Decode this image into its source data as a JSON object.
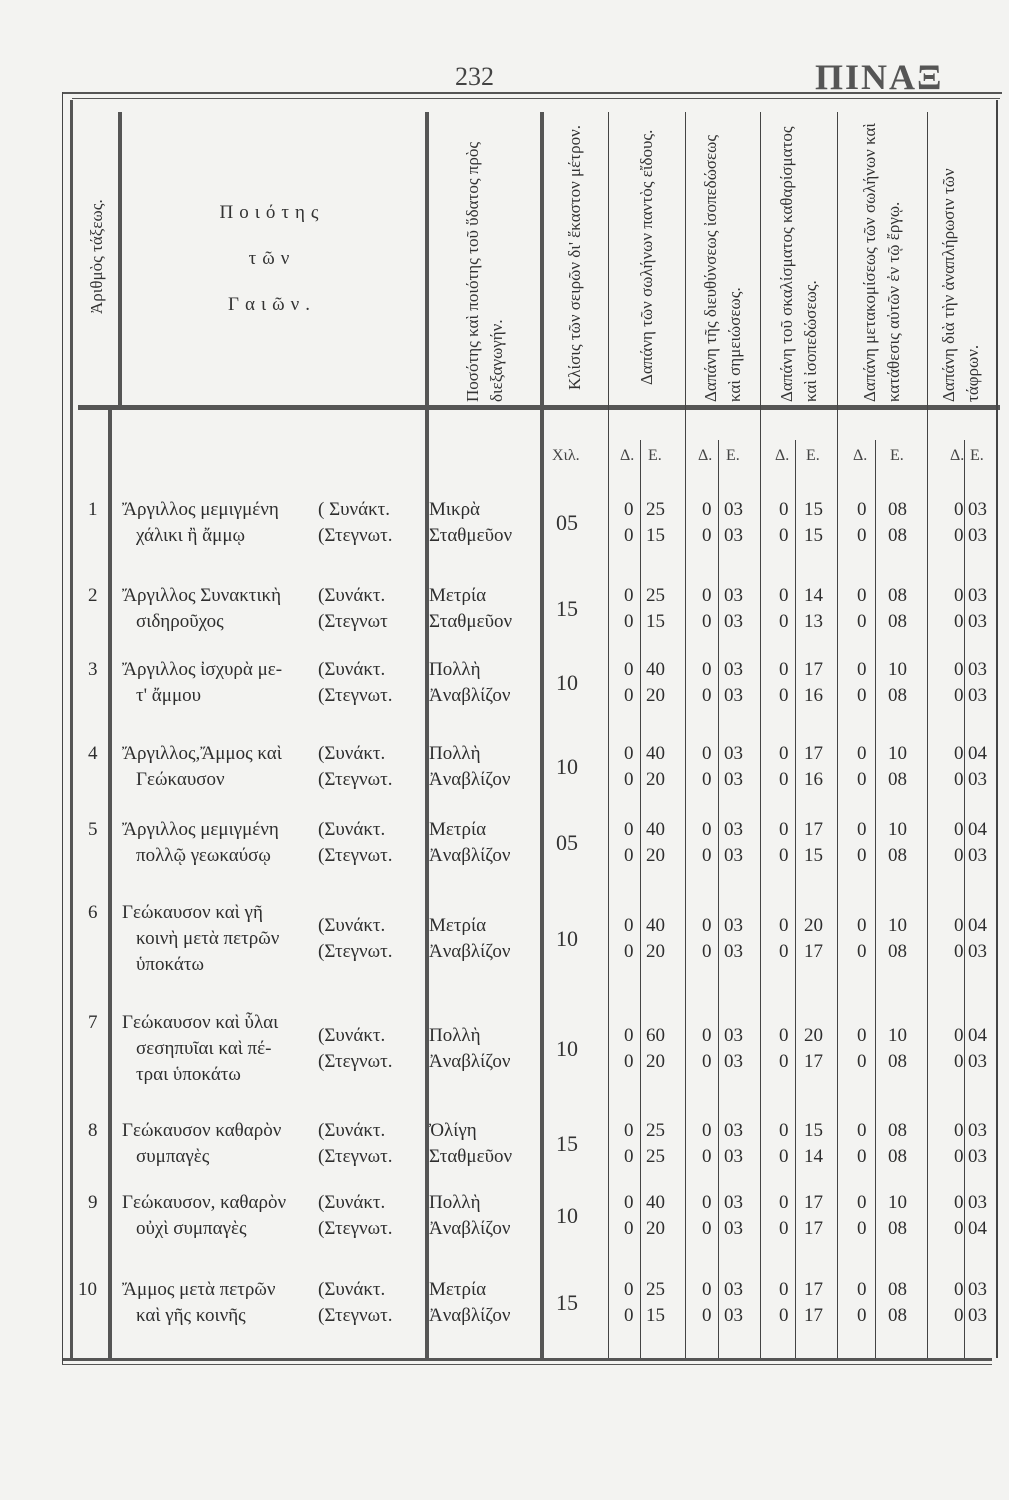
{
  "page": {
    "number": "232",
    "title": "ΠΙΝΑΞ"
  },
  "headers": {
    "order_number": "Ἀριθμὸς τάξεως.",
    "quality": [
      "Ποιότης",
      "τῶν",
      "Γαιῶν."
    ],
    "water": "Ποσότης καὶ ποιότης τοῦ ὕδατος πρὸς διεξαγωγήν.",
    "slope": "Κλίσις τῶν σειρῶν δι' ἕκαστον μέτρον.",
    "pipes": "Δαπάνη τῶν σωλήνων παντὸς εἴδους.",
    "direction": "Δαπάνη τῆς διευθύνσεως ἰσοπεδώσεως καὶ σημειώσεως.",
    "digging": "Δαπάνη τοῦ σκαλίσματος καθαρίσματος καὶ ἰσοπεδώσεως.",
    "transport": "Δαπάνη μετακομίσεως τῶν σωλήνων καὶ κατάθεσις αὐτῶν ἐν τῷ ἔργῳ.",
    "refill": "Δαπάνη διὰ τὴν ἀναπλήρωσιν τῶν τάφρων."
  },
  "subheaders": {
    "slope_unit": "Χιλ.",
    "d": "Δ.",
    "e": "Ε."
  },
  "rows": [
    {
      "n": "1",
      "quality": [
        "Ἄργιλλος μεμιγμένη",
        "χάλικι ἢ ἄμμῳ"
      ],
      "cond": [
        "( Συνάκτ.",
        "(Στεγνωτ."
      ],
      "water": [
        "Μικρὰ",
        "Σταθμεῦον"
      ],
      "slope": "05",
      "costs": [
        [
          "0",
          "25",
          "0",
          "03",
          "0",
          "15",
          "0",
          "08",
          "0",
          "03"
        ],
        [
          "0",
          "15",
          "0",
          "03",
          "0",
          "15",
          "0",
          "08",
          "0",
          "03"
        ]
      ]
    },
    {
      "n": "2",
      "quality": [
        "Ἄργιλλος Συνακτικὴ",
        "σιδηροῦχος"
      ],
      "cond": [
        "(Συνάκτ.",
        "(Στεγνωτ"
      ],
      "water": [
        "Μετρία",
        "Σταθμεῦον"
      ],
      "slope": "15",
      "costs": [
        [
          "0",
          "25",
          "0",
          "03",
          "0",
          "14",
          "0",
          "08",
          "0",
          "03"
        ],
        [
          "0",
          "15",
          "0",
          "03",
          "0",
          "13",
          "0",
          "08",
          "0",
          "03"
        ]
      ]
    },
    {
      "n": "3",
      "quality": [
        "Ἄργιλλος ἰσχυρὰ με-",
        "τ' ἄμμου"
      ],
      "cond": [
        "(Συνάκτ.",
        "(Στεγνωτ."
      ],
      "water": [
        "Πολλὴ",
        "Ἀναβλίζον"
      ],
      "slope": "10",
      "costs": [
        [
          "0",
          "40",
          "0",
          "03",
          "0",
          "17",
          "0",
          "10",
          "0",
          "03"
        ],
        [
          "0",
          "20",
          "0",
          "03",
          "0",
          "16",
          "0",
          "08",
          "0",
          "03"
        ]
      ]
    },
    {
      "n": "4",
      "quality": [
        "Ἄργιλλος,Ἄμμος καὶ",
        "Γεώκαυσον"
      ],
      "cond": [
        "(Συνάκτ.",
        "(Στεγνωτ."
      ],
      "water": [
        "Πολλὴ",
        "Ἀναβλίζον"
      ],
      "slope": "10",
      "costs": [
        [
          "0",
          "40",
          "0",
          "03",
          "0",
          "17",
          "0",
          "10",
          "0",
          "04"
        ],
        [
          "0",
          "20",
          "0",
          "03",
          "0",
          "16",
          "0",
          "08",
          "0",
          "03"
        ]
      ]
    },
    {
      "n": "5",
      "quality": [
        "Ἄργιλλος μεμιγμένη",
        "πολλῷ γεωκαύσῳ"
      ],
      "cond": [
        "(Συνάκτ.",
        "(Στεγνωτ."
      ],
      "water": [
        "Μετρία",
        "Ἀναβλίζον"
      ],
      "slope": "05",
      "costs": [
        [
          "0",
          "40",
          "0",
          "03",
          "0",
          "17",
          "0",
          "10",
          "0",
          "04"
        ],
        [
          "0",
          "20",
          "0",
          "03",
          "0",
          "15",
          "0",
          "08",
          "0",
          "03"
        ]
      ]
    },
    {
      "n": "6",
      "quality": [
        "Γεώκαυσον καὶ γῆ",
        "κοινὴ μετὰ πετρῶν",
        "ὑποκάτω"
      ],
      "cond": [
        "(Συνάκτ.",
        "(Στεγνωτ."
      ],
      "water": [
        "Μετρία",
        "Ἀναβλίζον"
      ],
      "slope": "10",
      "costs": [
        [
          "0",
          "40",
          "0",
          "03",
          "0",
          "20",
          "0",
          "10",
          "0",
          "04"
        ],
        [
          "0",
          "20",
          "0",
          "03",
          "0",
          "17",
          "0",
          "08",
          "0",
          "03"
        ]
      ]
    },
    {
      "n": "7",
      "quality": [
        "Γεώκαυσον καὶ ὗλαι",
        "σεσηπυῖαι καὶ πέ-",
        "τραι ὑποκάτω"
      ],
      "cond": [
        "(Συνάκτ.",
        "(Στεγνωτ."
      ],
      "water": [
        "Πολλὴ",
        "Ἀναβλίζον"
      ],
      "slope": "10",
      "costs": [
        [
          "0",
          "60",
          "0",
          "03",
          "0",
          "20",
          "0",
          "10",
          "0",
          "04"
        ],
        [
          "0",
          "20",
          "0",
          "03",
          "0",
          "17",
          "0",
          "08",
          "0",
          "03"
        ]
      ]
    },
    {
      "n": "8",
      "quality": [
        "Γεώκαυσον καθαρὸν",
        "συμπαγὲς"
      ],
      "cond": [
        "(Συνάκτ.",
        "(Στεγνωτ."
      ],
      "water": [
        "Ὀλίγη",
        "Σταθμεῦον"
      ],
      "slope": "15",
      "costs": [
        [
          "0",
          "25",
          "0",
          "03",
          "0",
          "15",
          "0",
          "08",
          "0",
          "03"
        ],
        [
          "0",
          "25",
          "0",
          "03",
          "0",
          "14",
          "0",
          "08",
          "0",
          "03"
        ]
      ]
    },
    {
      "n": "9",
      "quality": [
        "Γεώκαυσον, καθαρὸν",
        "οὐχὶ συμπαγὲς"
      ],
      "cond": [
        "(Συνάκτ.",
        "(Στεγνωτ."
      ],
      "water": [
        "Πολλὴ",
        "Ἀναβλίζον"
      ],
      "slope": "10",
      "costs": [
        [
          "0",
          "40",
          "0",
          "03",
          "0",
          "17",
          "0",
          "10",
          "0",
          "03"
        ],
        [
          "0",
          "20",
          "0",
          "03",
          "0",
          "17",
          "0",
          "08",
          "0",
          "04"
        ]
      ]
    },
    {
      "n": "10",
      "quality": [
        "Ἄμμος μετὰ πετρῶν",
        "καὶ γῆς κοινῆς"
      ],
      "cond": [
        "(Συνάκτ.",
        "(Στεγνωτ."
      ],
      "water": [
        "Μετρία",
        "Ἀναβλίζον"
      ],
      "slope": "15",
      "costs": [
        [
          "0",
          "25",
          "0",
          "03",
          "0",
          "17",
          "0",
          "08",
          "0",
          "03"
        ],
        [
          "0",
          "15",
          "0",
          "03",
          "0",
          "17",
          "0",
          "08",
          "0",
          "03"
        ]
      ]
    }
  ]
}
